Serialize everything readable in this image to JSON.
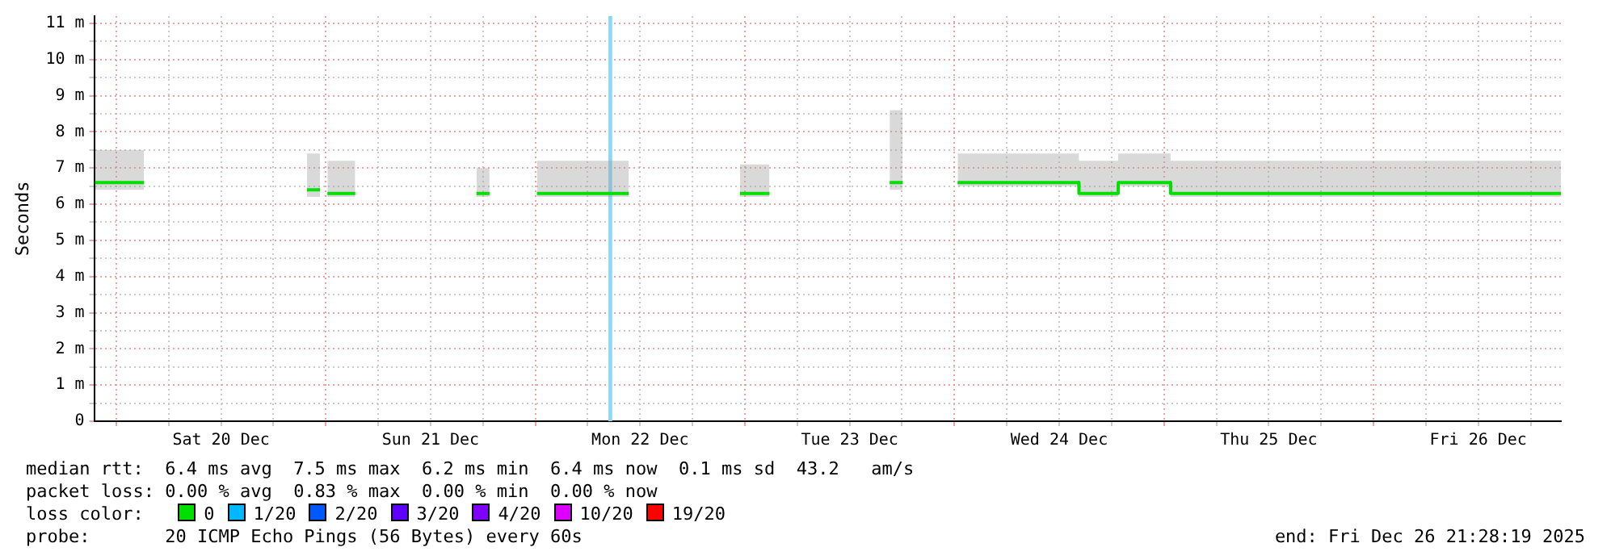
{
  "chart_data": {
    "type": "line",
    "ylabel": "Seconds",
    "xlim": [
      "2025-12-19T21:28",
      "2025-12-26T21:28"
    ],
    "xticks": [
      {
        "value": "2025-12-20T00:00",
        "label": null
      },
      {
        "value": "2025-12-20T06:00",
        "label": null
      },
      {
        "value": "2025-12-20T12:00",
        "label": "Sat 20 Dec"
      },
      {
        "value": "2025-12-20T18:00",
        "label": null
      },
      {
        "value": "2025-12-21T00:00",
        "label": null
      },
      {
        "value": "2025-12-21T06:00",
        "label": null
      },
      {
        "value": "2025-12-21T12:00",
        "label": "Sun 21 Dec"
      },
      {
        "value": "2025-12-21T18:00",
        "label": null
      },
      {
        "value": "2025-12-22T00:00",
        "label": null
      },
      {
        "value": "2025-12-22T06:00",
        "label": null
      },
      {
        "value": "2025-12-22T12:00",
        "label": "Mon 22 Dec"
      },
      {
        "value": "2025-12-22T18:00",
        "label": null
      },
      {
        "value": "2025-12-23T00:00",
        "label": null
      },
      {
        "value": "2025-12-23T06:00",
        "label": null
      },
      {
        "value": "2025-12-23T12:00",
        "label": "Tue 23 Dec"
      },
      {
        "value": "2025-12-23T18:00",
        "label": null
      },
      {
        "value": "2025-12-24T00:00",
        "label": null
      },
      {
        "value": "2025-12-24T06:00",
        "label": null
      },
      {
        "value": "2025-12-24T12:00",
        "label": "Wed 24 Dec"
      },
      {
        "value": "2025-12-24T18:00",
        "label": null
      },
      {
        "value": "2025-12-25T00:00",
        "label": null
      },
      {
        "value": "2025-12-25T06:00",
        "label": null
      },
      {
        "value": "2025-12-25T12:00",
        "label": "Thu 25 Dec"
      },
      {
        "value": "2025-12-25T18:00",
        "label": null
      },
      {
        "value": "2025-12-26T00:00",
        "label": null
      },
      {
        "value": "2025-12-26T06:00",
        "label": null
      },
      {
        "value": "2025-12-26T12:00",
        "label": "Fri 26 Dec"
      },
      {
        "value": "2025-12-26T18:00",
        "label": null
      }
    ],
    "ylim": [
      0,
      11.2
    ],
    "yticks": [
      0,
      {
        "value": 0.5,
        "label": null
      },
      {
        "value": 1,
        "label": "1 m"
      },
      {
        "value": 1.5,
        "label": null
      },
      {
        "value": 2,
        "label": "2 m"
      },
      {
        "value": 2.5,
        "label": null
      },
      {
        "value": 3,
        "label": "3 m"
      },
      {
        "value": 3.5,
        "label": null
      },
      {
        "value": 4,
        "label": "4 m"
      },
      {
        "value": 4.5,
        "label": null
      },
      {
        "value": 5,
        "label": "5 m"
      },
      {
        "value": 5.5,
        "label": null
      },
      {
        "value": 6,
        "label": "6 m"
      },
      {
        "value": 6.5,
        "label": null
      },
      {
        "value": 7,
        "label": "7 m"
      },
      {
        "value": 7.5,
        "label": null
      },
      {
        "value": 8,
        "label": "8 m"
      },
      {
        "value": 8.5,
        "label": null
      },
      {
        "value": 9,
        "label": "9 m"
      },
      {
        "value": 9.5,
        "label": null
      },
      {
        "value": 10,
        "label": "10 m"
      },
      {
        "value": 10.5,
        "label": null
      },
      {
        "value": 11,
        "label": "11 m"
      }
    ],
    "grid": true,
    "legend": "bottom",
    "marker": "none",
    "line_style": "solid",
    "bands": [
      {
        "axis": "x",
        "from": "2025-12-22T08:22",
        "to": "2025-12-22T08:48",
        "color": "#88d8f8"
      }
    ],
    "series": [
      {
        "name": "0",
        "color": "#00e000",
        "x": [
          "2025-12-19T21:34",
          "2025-12-20T03:11",
          "2025-12-20T12:00",
          "2025-12-20T21:50",
          "2025-12-20T23:20",
          "2025-12-20T23:40",
          "2025-12-21T00:11",
          "2025-12-21T03:22",
          "2025-12-21T12:00",
          "2025-12-21T17:15",
          "2025-12-21T18:45",
          "2025-12-21T21:00",
          "2025-12-22T00:11",
          "2025-12-22T10:41",
          "2025-12-22T18:00",
          "2025-12-22T23:26",
          "2025-12-23T02:49",
          "2025-12-23T10:00",
          "2025-12-23T16:35",
          "2025-12-23T18:05",
          "2025-12-23T21:00",
          "2025-12-24T00:22",
          "2025-12-24T14:15",
          "2025-12-24T14:16",
          "2025-12-24T18:45",
          "2025-12-24T18:46",
          "2025-12-25T00:45",
          "2025-12-25T00:46",
          "2025-12-26T21:28"
        ],
        "values": [
          6.6,
          6.6,
          null,
          6.4,
          6.4,
          null,
          6.3,
          6.3,
          null,
          6.3,
          6.3,
          null,
          6.3,
          6.3,
          null,
          6.3,
          6.3,
          null,
          6.6,
          6.6,
          null,
          6.6,
          6.6,
          6.3,
          6.3,
          6.6,
          6.6,
          6.3,
          6.3
        ],
        "lower": [
          6.4,
          6.4,
          null,
          6.2,
          6.2,
          null,
          6.2,
          6.2,
          null,
          6.2,
          6.2,
          null,
          6.2,
          6.2,
          null,
          6.2,
          6.2,
          null,
          6.4,
          6.4,
          null,
          6.5,
          6.5,
          6.2,
          6.2,
          6.5,
          6.5,
          6.2,
          6.2
        ],
        "upper": [
          7.5,
          7.5,
          null,
          7.4,
          7.4,
          null,
          7.2,
          7.2,
          null,
          7,
          7,
          null,
          7.2,
          7.2,
          null,
          7.1,
          7.1,
          null,
          8.6,
          8.6,
          null,
          7.4,
          7.4,
          7.2,
          7.2,
          7.4,
          7.4,
          7.2,
          7.2
        ]
      },
      {
        "name": "1/20",
        "color": "#00b8ff"
      },
      {
        "name": "2/20",
        "color": "#0059ff"
      },
      {
        "name": "3/20",
        "color": "#5e00ff"
      },
      {
        "name": "4/20",
        "color": "#7e00ff"
      },
      {
        "name": "10/20",
        "color": "#dd00ff"
      },
      {
        "name": "19/20",
        "color": "#ff0000"
      }
    ],
    "annotations": [
      "median rtt:  6.4 ms avg  7.5 ms max  6.2 ms min  6.4 ms now  0.1 ms sd  43.2   am/s",
      "packet loss: 0.00 % avg  0.83 % max  0.00 % min  0.00 % now",
      "loss color:",
      "probe:       20 ICMP Echo Pings (56 Bytes) every 60s",
      "end: Fri Dec 26 21:28:19 2025"
    ]
  }
}
